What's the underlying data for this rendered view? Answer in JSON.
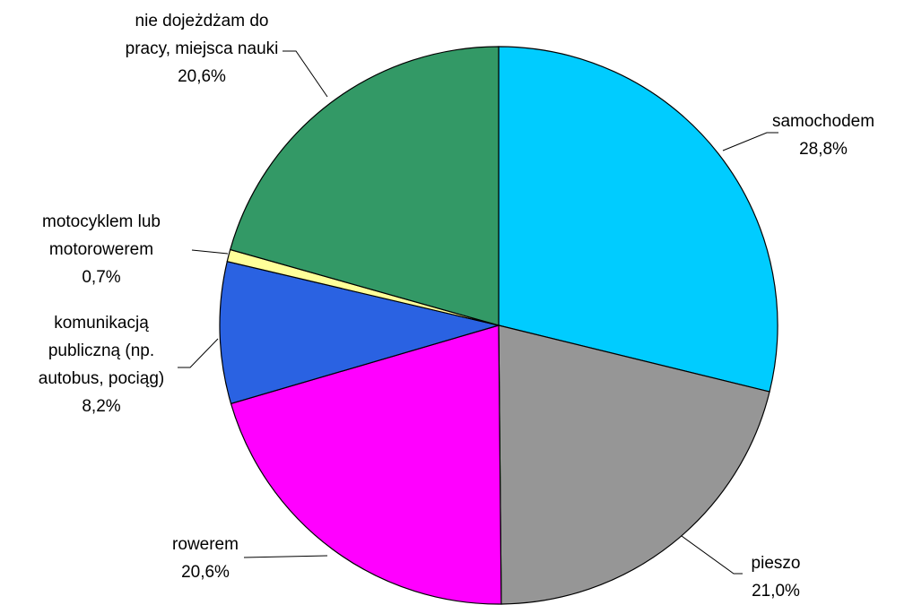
{
  "chart_data": {
    "type": "pie",
    "categories": [
      "samochodem",
      "pieszo",
      "rowerem",
      "komunikacją publiczną (np. autobus, pociąg)",
      "motocyklem lub motorowerem",
      "nie dojeżdżam do pracy, miejsca nauki"
    ],
    "values": [
      28.8,
      21.0,
      20.6,
      8.2,
      0.7,
      20.6
    ],
    "value_labels": [
      "28,8%",
      "21,0%",
      "20,6%",
      "8,2%",
      "0,7%",
      "20,6%"
    ],
    "colors": [
      "#00ccff",
      "#969696",
      "#ff00ff",
      "#2a62e2",
      "#ffff99",
      "#339966"
    ]
  }
}
